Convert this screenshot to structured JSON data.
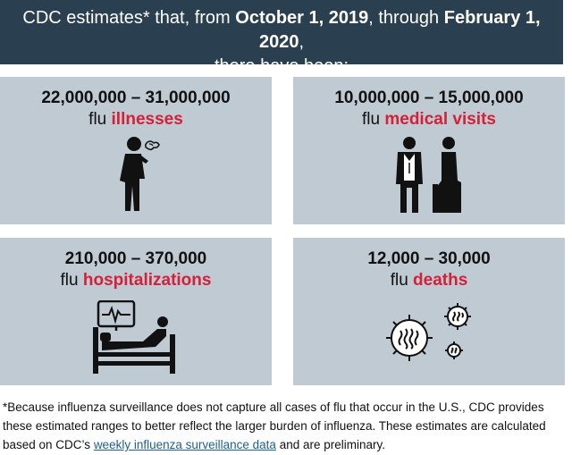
{
  "header": {
    "prefix": "CDC estimates* that, from ",
    "start_date": "October 1, 2019",
    "middle": ", through ",
    "end_date": "February 1, 2020",
    "suffix": ",",
    "line2": "there have been:"
  },
  "cards": [
    {
      "range": "22,000,000 – 31,000,000",
      "prefix": "flu ",
      "highlight": "illnesses",
      "icon": "sick-person-icon"
    },
    {
      "range": "10,000,000 – 15,000,000",
      "prefix": "flu ",
      "highlight": "medical visits",
      "icon": "doctor-patient-icon"
    },
    {
      "range": "210,000 – 370,000",
      "prefix": "flu ",
      "highlight": "hospitalizations",
      "icon": "hospital-bed-icon"
    },
    {
      "range": "12,000 – 30,000",
      "prefix": "flu ",
      "highlight": "deaths",
      "icon": "virus-icon"
    }
  ],
  "footer": {
    "text_before": "*Because influenza surveillance does not capture all cases of flu that occur in the U.S., CDC provides these estimated ranges to better reflect the larger burden of influenza. These estimates are calculated based on CDC’s ",
    "link": "weekly influenza surveillance data",
    "text_after": " and are preliminary."
  },
  "colors": {
    "header_bg": "#2a3f4f",
    "card_bg": "#bfcad3",
    "highlight": "#d42038",
    "link": "#1f5f8f"
  }
}
